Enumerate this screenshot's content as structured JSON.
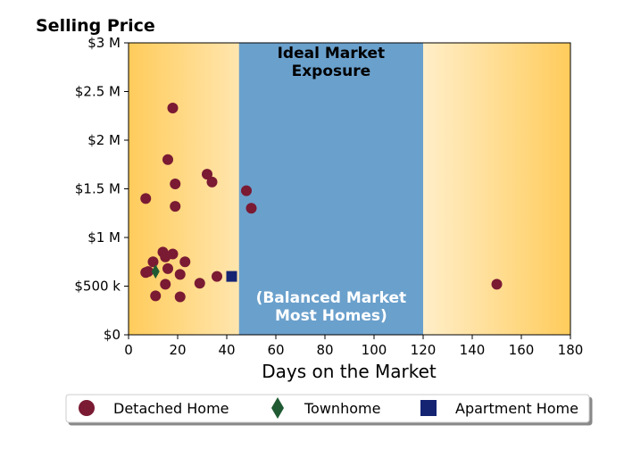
{
  "chart_data": {
    "type": "scatter",
    "ylabel": "Selling Price",
    "xlabel": "Days on the Market",
    "xlim": [
      0,
      180
    ],
    "ylim": [
      0,
      3000000
    ],
    "x_ticks": [
      0,
      20,
      40,
      60,
      80,
      100,
      120,
      140,
      160,
      180
    ],
    "y_ticks": [
      {
        "value": 0,
        "label": "$0"
      },
      {
        "value": 500000,
        "label": "$500 k"
      },
      {
        "value": 1000000,
        "label": "$1 M"
      },
      {
        "value": 1500000,
        "label": "$1.5 M"
      },
      {
        "value": 2000000,
        "label": "$2 M"
      },
      {
        "value": 2500000,
        "label": "$2.5 M"
      },
      {
        "value": 3000000,
        "label": "$3 M"
      }
    ],
    "grid": false,
    "bands": [
      {
        "x_start": 45,
        "x_end": 120,
        "color": "#6aa0cc",
        "title_lines": [
          "Ideal Market",
          "Exposure"
        ],
        "note_lines": [
          "(Balanced Market",
          "Most Homes)"
        ]
      }
    ],
    "background_gradient": {
      "edge_color": "#ffcc5c",
      "center_color": "#ffffff"
    },
    "legend_position": "bottom",
    "series": [
      {
        "name": "Detached Home",
        "marker": "circle",
        "color": "#7a1a33",
        "points": [
          {
            "x": 7,
            "y": 1400000
          },
          {
            "x": 7,
            "y": 640000
          },
          {
            "x": 8,
            "y": 650000
          },
          {
            "x": 10,
            "y": 750000
          },
          {
            "x": 11,
            "y": 400000
          },
          {
            "x": 14,
            "y": 850000
          },
          {
            "x": 15,
            "y": 800000
          },
          {
            "x": 15,
            "y": 520000
          },
          {
            "x": 16,
            "y": 680000
          },
          {
            "x": 16,
            "y": 1800000
          },
          {
            "x": 18,
            "y": 2330000
          },
          {
            "x": 18,
            "y": 830000
          },
          {
            "x": 19,
            "y": 1550000
          },
          {
            "x": 19,
            "y": 1320000
          },
          {
            "x": 21,
            "y": 620000
          },
          {
            "x": 21,
            "y": 390000
          },
          {
            "x": 23,
            "y": 750000
          },
          {
            "x": 29,
            "y": 530000
          },
          {
            "x": 32,
            "y": 1650000
          },
          {
            "x": 34,
            "y": 1570000
          },
          {
            "x": 36,
            "y": 600000
          },
          {
            "x": 48,
            "y": 1480000
          },
          {
            "x": 50,
            "y": 1300000
          },
          {
            "x": 150,
            "y": 520000
          }
        ]
      },
      {
        "name": "Townhome",
        "marker": "diamond",
        "color": "#1f5a32",
        "points": [
          {
            "x": 11,
            "y": 650000
          }
        ]
      },
      {
        "name": "Apartment Home",
        "marker": "square",
        "color": "#142473",
        "points": [
          {
            "x": 42,
            "y": 600000
          }
        ]
      }
    ]
  }
}
